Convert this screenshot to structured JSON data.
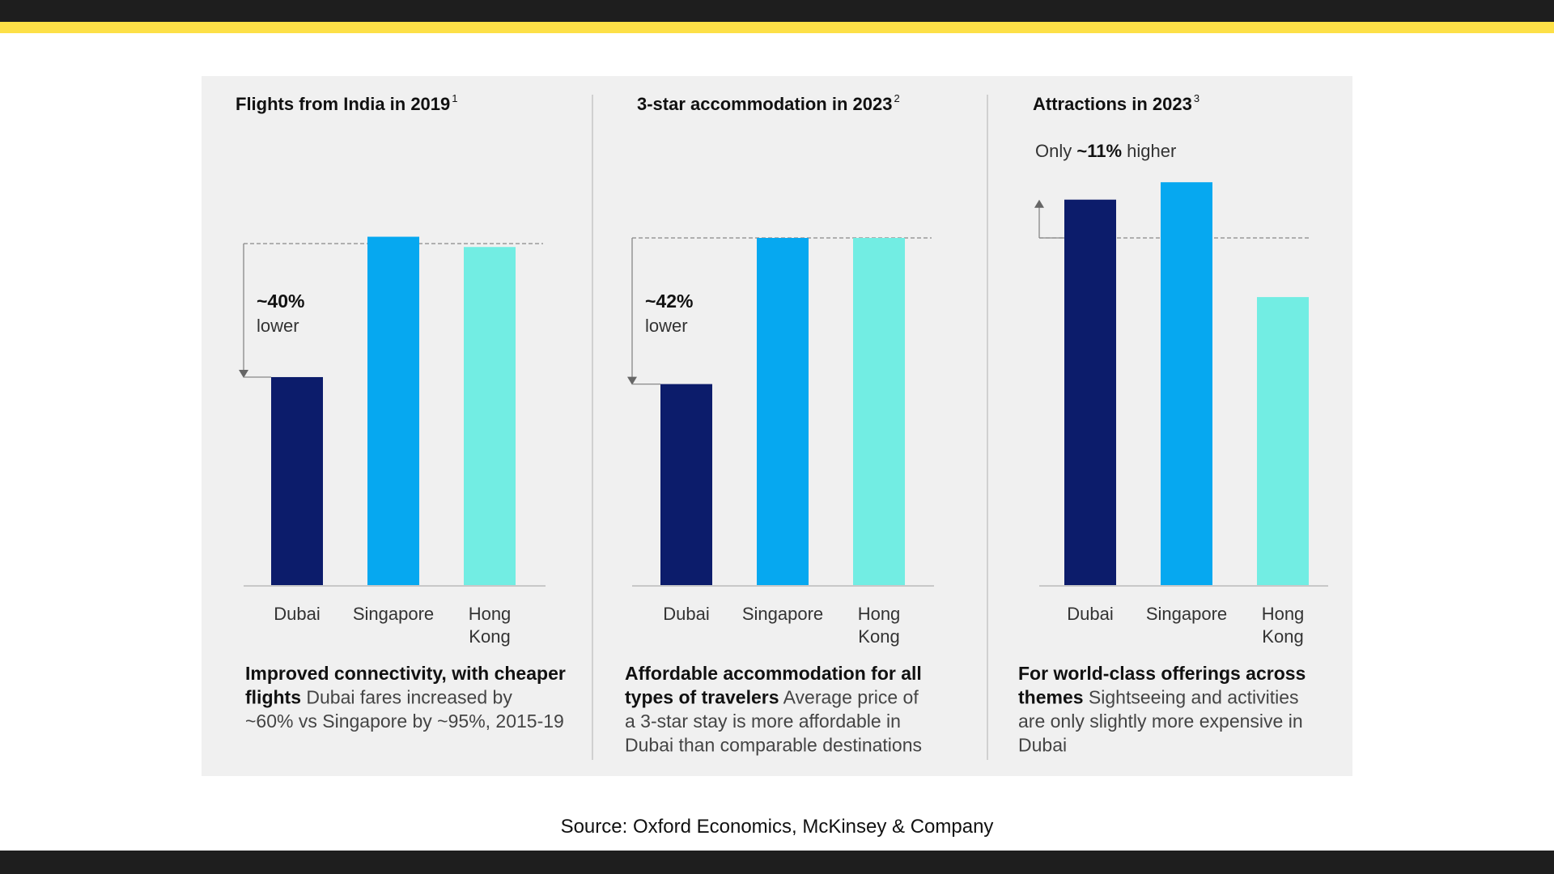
{
  "source": "Source: Oxford Economics, McKinsey & Company",
  "colors": {
    "dubai": "#0c1c6b",
    "singapore": "#06a8f0",
    "hong_kong": "#72ede3",
    "accent": "#fde047",
    "dark": "#1e1e1e"
  },
  "chart_data": [
    {
      "type": "bar",
      "title": "Flights from India in 2019",
      "footnote": "1",
      "categories": [
        "Dubai",
        "Singapore",
        "Hong Kong"
      ],
      "series": [
        {
          "values": [
            61,
            102,
            99
          ]
        }
      ],
      "reference": 100,
      "annotation": {
        "value": "~40%",
        "label": "lower"
      },
      "caption_bold": "Improved connectivity, with cheaper flights",
      "caption_text": "Dubai fares increased by ~60% vs Singapore by ~95%, 2015-19",
      "ylim": [
        0,
        115
      ]
    },
    {
      "type": "bar",
      "title": "3-star accommodation in 2023",
      "footnote": "2",
      "categories": [
        "Dubai",
        "Singapore",
        "Hong Kong"
      ],
      "series": [
        {
          "values": [
            58,
            100,
            100
          ]
        }
      ],
      "reference": 100,
      "annotation": {
        "value": "~42%",
        "label": "lower"
      },
      "caption_bold": "Affordable accommodation for all types of travelers",
      "caption_text": "Average price of a 3-star stay is more affordable in Dubai than comparable destinations",
      "ylim": [
        0,
        115
      ]
    },
    {
      "type": "bar",
      "title": "Attractions in 2023",
      "footnote": "3",
      "categories": [
        "Dubai",
        "Singapore",
        "Hong Kong"
      ],
      "series": [
        {
          "values": [
            111,
            116,
            83
          ]
        }
      ],
      "reference": 100,
      "annotation": {
        "prefix": "Only ",
        "value": "~11%",
        "suffix": " higher"
      },
      "caption_bold": "For world-class offerings across themes",
      "caption_text": "Sightseeing and activities are only slightly more expensive in Dubai",
      "ylim": [
        0,
        130
      ]
    }
  ]
}
